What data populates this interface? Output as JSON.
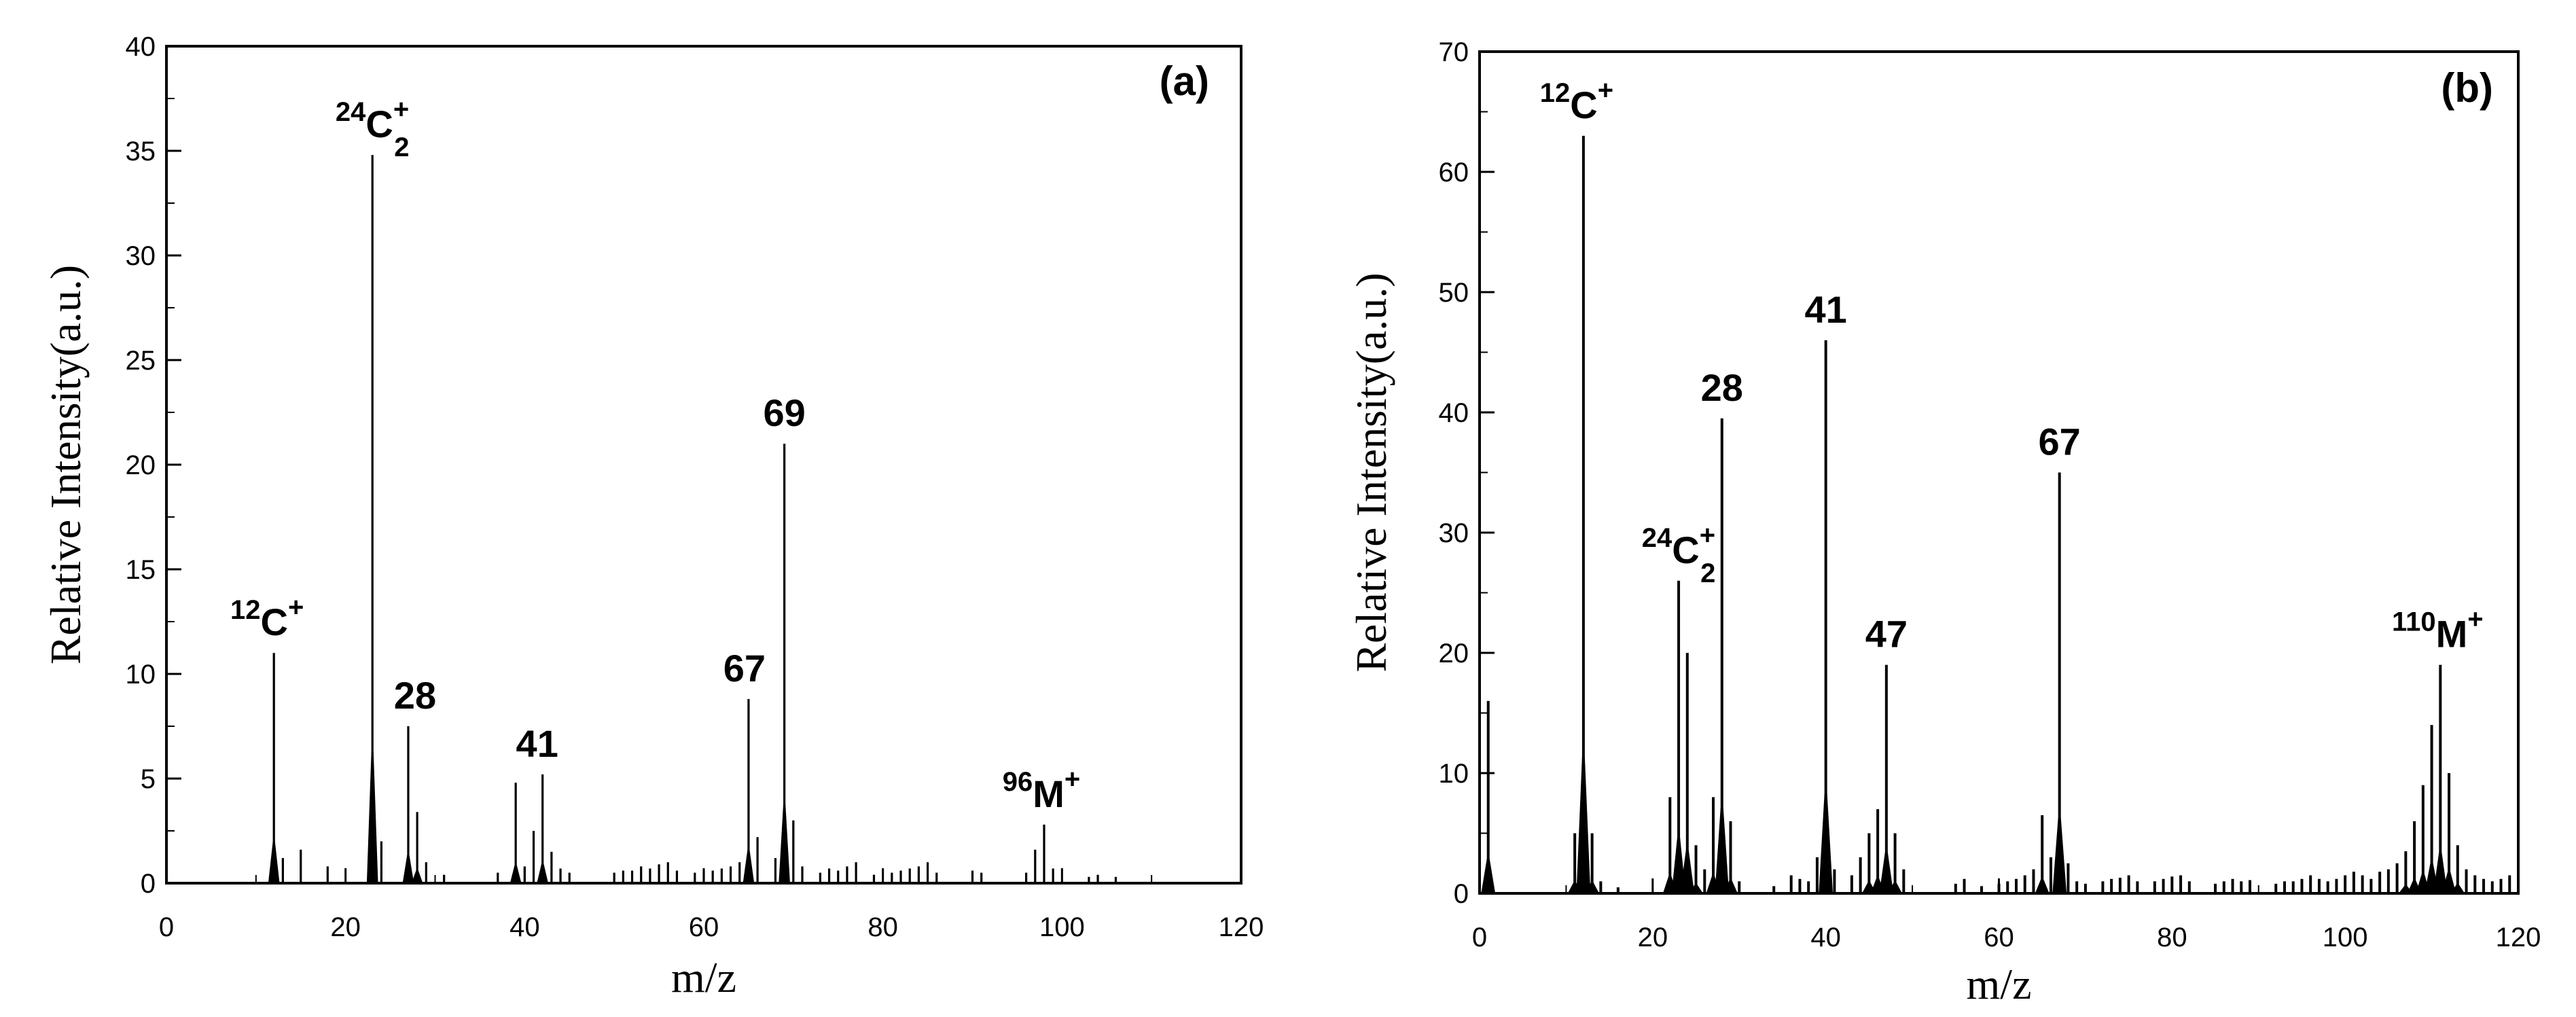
{
  "chart_data": [
    {
      "type": "bar",
      "panel_label": "(a)",
      "xlabel": "m/z",
      "ylabel": "Relative Intensity(a.u.)",
      "xlim": [
        0,
        120
      ],
      "ylim": [
        0,
        40
      ],
      "x_ticks": [
        "0",
        "20",
        "40",
        "60",
        "80",
        "100",
        "120"
      ],
      "y_ticks": [
        "0",
        "5",
        "10",
        "15",
        "20",
        "25",
        "30",
        "35",
        "40"
      ],
      "grid": false,
      "legend": "none",
      "peaks": [
        [
          12,
          11.0
        ],
        [
          13,
          1.2
        ],
        [
          15,
          1.6
        ],
        [
          18,
          0.8
        ],
        [
          23,
          34.8
        ],
        [
          24,
          2.0
        ],
        [
          27,
          7.5
        ],
        [
          28,
          3.4
        ],
        [
          29,
          1.0
        ],
        [
          31,
          0.4
        ],
        [
          37,
          0.5
        ],
        [
          39,
          4.8
        ],
        [
          40,
          0.8
        ],
        [
          41,
          2.5
        ],
        [
          42,
          5.2
        ],
        [
          43,
          1.5
        ],
        [
          44,
          0.7
        ],
        [
          45,
          0.5
        ],
        [
          50,
          0.5
        ],
        [
          51,
          0.6
        ],
        [
          52,
          0.6
        ],
        [
          53,
          0.8
        ],
        [
          54,
          0.7
        ],
        [
          55,
          0.9
        ],
        [
          56,
          1.0
        ],
        [
          57,
          0.6
        ],
        [
          59,
          0.5
        ],
        [
          60,
          0.6
        ],
        [
          61,
          0.6
        ],
        [
          62,
          0.7
        ],
        [
          63,
          0.8
        ],
        [
          64,
          1.0
        ],
        [
          65,
          8.8
        ],
        [
          66,
          2.2
        ],
        [
          68,
          1.2
        ],
        [
          69,
          21.0
        ],
        [
          70,
          3.0
        ],
        [
          71,
          0.8
        ],
        [
          73,
          0.5
        ],
        [
          74,
          0.7
        ],
        [
          75,
          0.6
        ],
        [
          76,
          0.8
        ],
        [
          77,
          1.0
        ],
        [
          79,
          0.4
        ],
        [
          81,
          0.5
        ],
        [
          82,
          0.6
        ],
        [
          83,
          0.7
        ],
        [
          84,
          0.8
        ],
        [
          85,
          1.0
        ],
        [
          86,
          0.5
        ],
        [
          90,
          0.6
        ],
        [
          91,
          0.5
        ],
        [
          96,
          0.5
        ],
        [
          97,
          1.6
        ],
        [
          98,
          2.8
        ],
        [
          99,
          0.7
        ],
        [
          103,
          0.3
        ],
        [
          104,
          0.4
        ],
        [
          106,
          0.3
        ]
      ],
      "annotations": [
        {
          "x": 12,
          "y": 11.0,
          "pre": "12",
          "base": "C",
          "sup": "+",
          "sub": ""
        },
        {
          "x": 23,
          "y": 34.8,
          "pre": "24",
          "base": "C",
          "sup": "+",
          "sub": "2"
        },
        {
          "x": 27,
          "y": 7.5,
          "pre": "",
          "base": "28",
          "sup": "",
          "sub": ""
        },
        {
          "x": 42,
          "y": 5.2,
          "pre": "",
          "base": "41",
          "sup": "",
          "sub": ""
        },
        {
          "x": 65,
          "y": 8.8,
          "pre": "",
          "base": "67",
          "sup": "",
          "sub": ""
        },
        {
          "x": 69,
          "y": 21.0,
          "pre": "",
          "base": "69",
          "sup": "",
          "sub": ""
        },
        {
          "x": 98,
          "y": 2.8,
          "pre": "96",
          "base": "M",
          "sup": "+",
          "sub": ""
        }
      ]
    },
    {
      "type": "bar",
      "panel_label": "(b)",
      "xlabel": "m/z",
      "ylabel": "Relative Intensity(a.u.)",
      "xlim": [
        0,
        120
      ],
      "ylim": [
        0,
        70
      ],
      "x_ticks": [
        "0",
        "20",
        "40",
        "60",
        "80",
        "100",
        "120"
      ],
      "y_ticks": [
        "0",
        "10",
        "20",
        "30",
        "40",
        "50",
        "60",
        "70"
      ],
      "grid": false,
      "legend": "none",
      "peaks": [
        [
          1,
          16.0
        ],
        [
          11,
          5.0
        ],
        [
          12,
          63.0
        ],
        [
          13,
          5.0
        ],
        [
          14,
          1.0
        ],
        [
          16,
          0.5
        ],
        [
          22,
          8.0
        ],
        [
          23,
          26.0
        ],
        [
          24,
          20.0
        ],
        [
          25,
          4.0
        ],
        [
          26,
          2.0
        ],
        [
          27,
          8.0
        ],
        [
          28,
          39.5
        ],
        [
          29,
          6.0
        ],
        [
          30,
          1.0
        ],
        [
          34,
          0.6
        ],
        [
          36,
          1.5
        ],
        [
          37,
          1.2
        ],
        [
          38,
          1.0
        ],
        [
          39,
          3.0
        ],
        [
          40,
          46.0
        ],
        [
          41,
          2.0
        ],
        [
          43,
          1.5
        ],
        [
          44,
          3.0
        ],
        [
          45,
          5.0
        ],
        [
          46,
          7.0
        ],
        [
          47,
          19.0
        ],
        [
          48,
          5.0
        ],
        [
          49,
          2.0
        ],
        [
          55,
          0.8
        ],
        [
          56,
          1.2
        ],
        [
          58,
          0.6
        ],
        [
          60,
          0.8
        ],
        [
          61,
          1.0
        ],
        [
          62,
          1.2
        ],
        [
          63,
          1.5
        ],
        [
          64,
          2.0
        ],
        [
          65,
          6.5
        ],
        [
          66,
          3.0
        ],
        [
          67,
          35.0
        ],
        [
          68,
          2.5
        ],
        [
          69,
          1.0
        ],
        [
          70,
          0.8
        ],
        [
          72,
          1.0
        ],
        [
          73,
          1.2
        ],
        [
          74,
          1.3
        ],
        [
          75,
          1.5
        ],
        [
          76,
          1.0
        ],
        [
          78,
          1.0
        ],
        [
          79,
          1.2
        ],
        [
          80,
          1.4
        ],
        [
          81,
          1.5
        ],
        [
          82,
          1.0
        ],
        [
          85,
          0.8
        ],
        [
          86,
          1.0
        ],
        [
          87,
          1.2
        ],
        [
          88,
          1.0
        ],
        [
          89,
          1.1
        ],
        [
          92,
          0.8
        ],
        [
          93,
          1.0
        ],
        [
          94,
          1.0
        ],
        [
          95,
          1.2
        ],
        [
          96,
          1.5
        ],
        [
          97,
          1.2
        ],
        [
          98,
          1.0
        ],
        [
          99,
          1.2
        ],
        [
          100,
          1.5
        ],
        [
          101,
          1.8
        ],
        [
          102,
          1.5
        ],
        [
          103,
          1.2
        ],
        [
          104,
          1.8
        ],
        [
          105,
          2.0
        ],
        [
          106,
          2.5
        ],
        [
          107,
          3.5
        ],
        [
          108,
          6.0
        ],
        [
          109,
          9.0
        ],
        [
          110,
          14.0
        ],
        [
          111,
          19.0
        ],
        [
          112,
          10.0
        ],
        [
          113,
          4.0
        ],
        [
          114,
          2.0
        ],
        [
          115,
          1.5
        ],
        [
          116,
          1.2
        ],
        [
          117,
          1.0
        ],
        [
          118,
          1.2
        ],
        [
          119,
          1.5
        ]
      ],
      "annotations": [
        {
          "x": 12,
          "y": 63.0,
          "pre": "12",
          "base": "C",
          "sup": "+",
          "sub": ""
        },
        {
          "x": 23,
          "y": 26.0,
          "pre": "24",
          "base": "C",
          "sup": "+",
          "sub": "2"
        },
        {
          "x": 28,
          "y": 39.5,
          "pre": "",
          "base": "28",
          "sup": "",
          "sub": ""
        },
        {
          "x": 40,
          "y": 46.0,
          "pre": "",
          "base": "41",
          "sup": "",
          "sub": ""
        },
        {
          "x": 47,
          "y": 19.0,
          "pre": "",
          "base": "47",
          "sup": "",
          "sub": ""
        },
        {
          "x": 67,
          "y": 35.0,
          "pre": "",
          "base": "67",
          "sup": "",
          "sub": ""
        },
        {
          "x": 111,
          "y": 19.0,
          "pre": "110",
          "base": "M",
          "sup": "+",
          "sub": ""
        }
      ]
    }
  ]
}
